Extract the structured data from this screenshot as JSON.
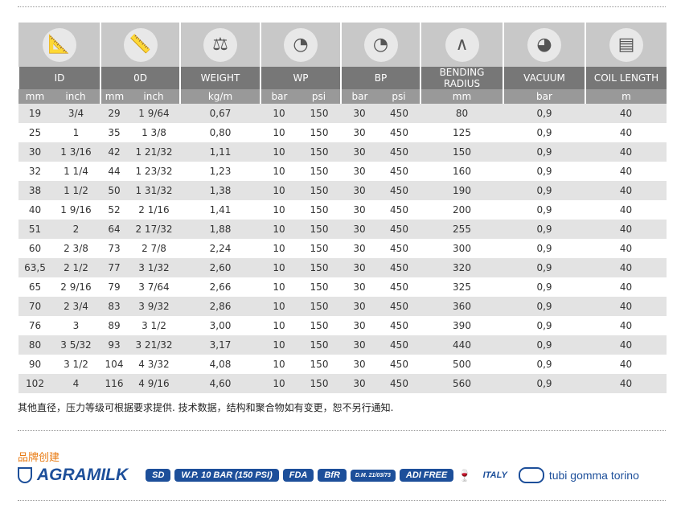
{
  "header": {
    "columns": [
      {
        "title": "ID",
        "icon": "caliper-inner-icon",
        "units": [
          "mm",
          "inch"
        ]
      },
      {
        "title": "0D",
        "icon": "caliper-outer-icon",
        "units": [
          "mm",
          "inch"
        ]
      },
      {
        "title": "WEIGHT",
        "icon": "scale-icon",
        "units": [
          "kg/m"
        ]
      },
      {
        "title": "WP",
        "icon": "pressure-gauge-icon",
        "units": [
          "bar",
          "psi"
        ]
      },
      {
        "title": "BP",
        "icon": "pressure-gauge-icon",
        "units": [
          "bar",
          "psi"
        ]
      },
      {
        "title": "BENDING RADIUS",
        "icon": "compass-icon",
        "units": [
          "mm"
        ]
      },
      {
        "title": "VACUUM",
        "icon": "vacuum-gauge-icon",
        "units": [
          "bar"
        ]
      },
      {
        "title": "COIL LENGTH",
        "icon": "hose-coil-icon",
        "units": [
          "m"
        ]
      }
    ]
  },
  "rows": [
    [
      "19",
      "3/4",
      "29",
      "1 9/64",
      "0,67",
      "10",
      "150",
      "30",
      "450",
      "80",
      "0,9",
      "40"
    ],
    [
      "25",
      "1",
      "35",
      "1 3/8",
      "0,80",
      "10",
      "150",
      "30",
      "450",
      "125",
      "0,9",
      "40"
    ],
    [
      "30",
      "1 3/16",
      "42",
      "1 21/32",
      "1,11",
      "10",
      "150",
      "30",
      "450",
      "150",
      "0,9",
      "40"
    ],
    [
      "32",
      "1 1/4",
      "44",
      "1 23/32",
      "1,23",
      "10",
      "150",
      "30",
      "450",
      "160",
      "0,9",
      "40"
    ],
    [
      "38",
      "1 1/2",
      "50",
      "1 31/32",
      "1,38",
      "10",
      "150",
      "30",
      "450",
      "190",
      "0,9",
      "40"
    ],
    [
      "40",
      "1 9/16",
      "52",
      "2 1/16",
      "1,41",
      "10",
      "150",
      "30",
      "450",
      "200",
      "0,9",
      "40"
    ],
    [
      "51",
      "2",
      "64",
      "2 17/32",
      "1,88",
      "10",
      "150",
      "30",
      "450",
      "255",
      "0,9",
      "40"
    ],
    [
      "60",
      "2 3/8",
      "73",
      "2 7/8",
      "2,24",
      "10",
      "150",
      "30",
      "450",
      "300",
      "0,9",
      "40"
    ],
    [
      "63,5",
      "2 1/2",
      "77",
      "3 1/32",
      "2,60",
      "10",
      "150",
      "30",
      "450",
      "320",
      "0,9",
      "40"
    ],
    [
      "65",
      "2 9/16",
      "79",
      "3 7/64",
      "2,66",
      "10",
      "150",
      "30",
      "450",
      "325",
      "0,9",
      "40"
    ],
    [
      "70",
      "2 3/4",
      "83",
      "3 9/32",
      "2,86",
      "10",
      "150",
      "30",
      "450",
      "360",
      "0,9",
      "40"
    ],
    [
      "76",
      "3",
      "89",
      "3 1/2",
      "3,00",
      "10",
      "150",
      "30",
      "450",
      "390",
      "0,9",
      "40"
    ],
    [
      "80",
      "3 5/32",
      "93",
      "3 21/32",
      "3,17",
      "10",
      "150",
      "30",
      "450",
      "440",
      "0,9",
      "40"
    ],
    [
      "90",
      "3 1/2",
      "104",
      "4 3/32",
      "4,08",
      "10",
      "150",
      "30",
      "450",
      "500",
      "0,9",
      "40"
    ],
    [
      "102",
      "4",
      "116",
      "4 9/16",
      "4,60",
      "10",
      "150",
      "30",
      "450",
      "560",
      "0,9",
      "40"
    ]
  ],
  "note": "其他直径，压力等级可根据要求提供. 技术数据，结构和聚合物如有变更，恕不另行通知.",
  "brand_heading": "品牌创建",
  "logos": {
    "brand": "AGRAMILK",
    "badges": [
      "SD",
      "W.P. 10 BAR (150 PSI)",
      "FDA",
      "BfR",
      "D.M. 21/03/73",
      "ADI FREE"
    ],
    "country": "ITALY",
    "maker": "tubi gomma torino"
  },
  "colors": {
    "header_dark": "#777777",
    "header_light": "#999999",
    "row_alt": "#e3e3e3",
    "brand_orange": "#e87a12",
    "logo_blue": "#1d4f9a"
  }
}
